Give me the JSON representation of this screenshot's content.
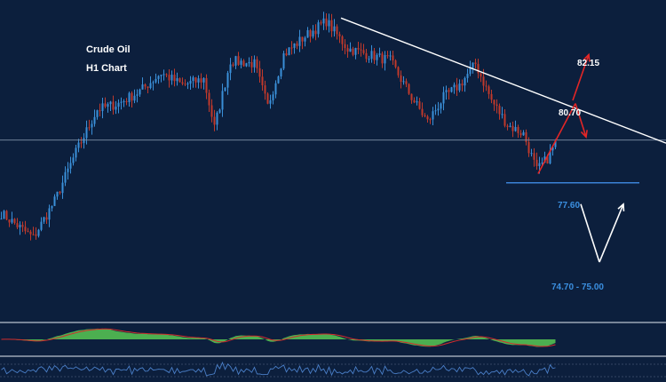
{
  "title": "Crude Oil",
  "subtitle": "H1 Chart",
  "colors": {
    "background": "#0c1f3d",
    "candle_up": "#3a8fd8",
    "candle_down": "#c0392b",
    "trendline": "#ffffff",
    "support": "#3b82d6",
    "arrow_bull": "#e32626",
    "arrow_bear": "#ffffff",
    "macd_fill": "#4caf50",
    "macd_signal": "#d22c2c",
    "rsi_line": "#4a7fc8"
  },
  "levels": {
    "target_high": "82.15",
    "resistance": "80.70",
    "support": "77.60",
    "target_low": "74.70 - 75.00"
  },
  "chart_data": {
    "type": "candlestick",
    "title": "Crude Oil",
    "subtitle": "H1 Chart",
    "ylim": [
      73.4,
      83.3
    ],
    "close_path": [
      {
        "i": 0,
        "price": 76.6
      },
      {
        "i": 6,
        "price": 76.2
      },
      {
        "i": 12,
        "price": 75.8
      },
      {
        "i": 20,
        "price": 77.0
      },
      {
        "i": 28,
        "price": 78.6
      },
      {
        "i": 36,
        "price": 80.0
      },
      {
        "i": 44,
        "price": 80.2
      },
      {
        "i": 52,
        "price": 80.6
      },
      {
        "i": 60,
        "price": 81.2
      },
      {
        "i": 68,
        "price": 80.8
      },
      {
        "i": 76,
        "price": 81.0
      },
      {
        "i": 80,
        "price": 79.4
      },
      {
        "i": 86,
        "price": 81.6
      },
      {
        "i": 95,
        "price": 81.5
      },
      {
        "i": 100,
        "price": 80.1
      },
      {
        "i": 106,
        "price": 81.8
      },
      {
        "i": 114,
        "price": 82.4
      },
      {
        "i": 122,
        "price": 82.9
      },
      {
        "i": 130,
        "price": 82.0
      },
      {
        "i": 138,
        "price": 81.8
      },
      {
        "i": 146,
        "price": 81.6
      },
      {
        "i": 154,
        "price": 80.4
      },
      {
        "i": 160,
        "price": 79.6
      },
      {
        "i": 166,
        "price": 80.4
      },
      {
        "i": 172,
        "price": 80.8
      },
      {
        "i": 178,
        "price": 81.5
      },
      {
        "i": 184,
        "price": 80.3
      },
      {
        "i": 190,
        "price": 79.5
      },
      {
        "i": 196,
        "price": 79.2
      },
      {
        "i": 201,
        "price": 78.0
      },
      {
        "i": 205,
        "price": 78.4
      },
      {
        "i": 208,
        "price": 78.9
      }
    ],
    "n_candles": 209,
    "trendline": [
      {
        "i": 128,
        "price": 83.0
      },
      {
        "i": 250,
        "price": 78.9
      }
    ],
    "horizontal_line": 79.0,
    "support_line": {
      "price": 77.6,
      "from_i": 190,
      "to_i": 240
    },
    "scenario_up": [
      {
        "i": 202,
        "price": 77.9
      },
      {
        "i": 216,
        "price": 80.2
      },
      {
        "i": 220,
        "price": 79.1
      },
      {
        "i": 215,
        "price": 80.3
      },
      {
        "i": 221,
        "price": 81.8
      }
    ],
    "scenario_down": [
      {
        "i": 218,
        "price": 76.9
      },
      {
        "i": 225,
        "price": 75.0
      },
      {
        "i": 234,
        "price": 76.9
      }
    ]
  }
}
